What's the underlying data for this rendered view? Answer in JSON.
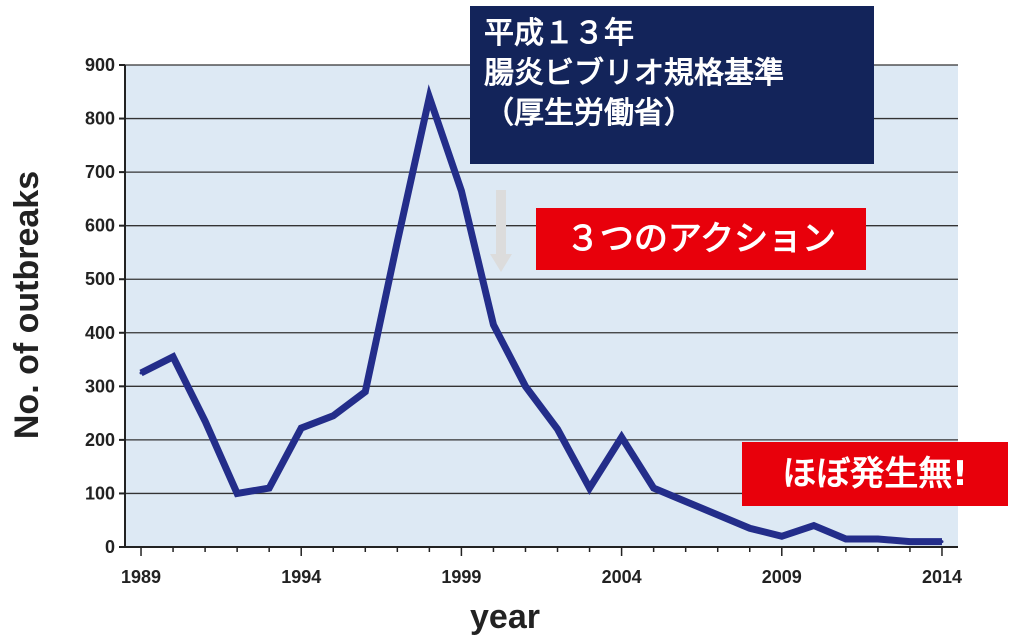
{
  "chart_data": {
    "type": "line",
    "title": "",
    "xlabel": "year",
    "ylabel": "No. of outbreaks",
    "xlim": [
      1988.5,
      2014.5
    ],
    "ylim": [
      0,
      900
    ],
    "grid": true,
    "x_ticks": [
      "1989",
      "1994",
      "1999",
      "2004",
      "2009",
      "2014"
    ],
    "y_ticks": [
      "0",
      "100",
      "200",
      "300",
      "400",
      "500",
      "600",
      "700",
      "800",
      "900"
    ],
    "x": [
      1989,
      1990,
      1991,
      1992,
      1993,
      1994,
      1995,
      1996,
      1997,
      1998,
      1999,
      2000,
      2001,
      2002,
      2003,
      2004,
      2005,
      2006,
      2007,
      2008,
      2009,
      2010,
      2011,
      2012,
      2013,
      2014
    ],
    "series": [
      {
        "values": [
          325,
          355,
          235,
          100,
          110,
          222,
          245,
          290,
          570,
          840,
          665,
          415,
          300,
          220,
          110,
          205,
          110,
          85,
          60,
          35,
          20,
          40,
          15,
          15,
          10,
          10
        ]
      }
    ],
    "annotations": {
      "regulation": [
        "平成１３年",
        "腸炎ビブリオ規格基準",
        "（厚生労働省）"
      ],
      "actions": "３つのアクション",
      "almost_none": "ほぼ発生無!"
    }
  },
  "colors": {
    "plot_background": "#dde9f4",
    "line": "#232d8a",
    "gridline": "#333333",
    "annotation_navy": "#13245a",
    "annotation_red": "#e8000b"
  }
}
